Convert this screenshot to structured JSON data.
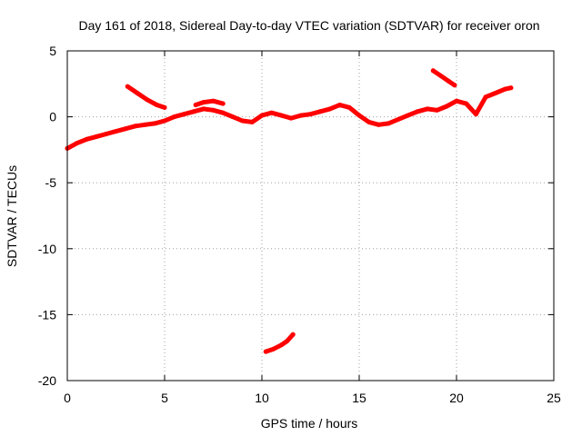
{
  "chart_data": {
    "type": "scatter",
    "title": "Day 161 of 2018, Sidereal Day-to-day VTEC variation (SDTVAR) for receiver oron",
    "xlabel": "GPS time / hours",
    "ylabel": "SDTVAR / TECUs",
    "xlim": [
      0,
      25
    ],
    "ylim": [
      -20,
      5
    ],
    "xticks": [
      "0",
      "5",
      "10",
      "15",
      "20",
      "25"
    ],
    "yticks": [
      "5",
      "0",
      "-5",
      "-10",
      "-15",
      "-20"
    ],
    "xtick_values": [
      0,
      5,
      10,
      15,
      20,
      25
    ],
    "ytick_values": [
      5,
      0,
      -5,
      -10,
      -15,
      -20
    ],
    "grid": true,
    "series_color": "#ff0000",
    "series": [
      {
        "name": "main trace",
        "x": [
          0.0,
          0.5,
          1.0,
          1.5,
          2.0,
          2.5,
          3.0,
          3.5,
          4.0,
          4.5,
          5.0,
          5.5,
          6.0,
          6.5,
          7.0,
          7.5,
          8.0,
          8.5,
          9.0,
          9.5,
          10.0,
          10.5,
          11.0,
          11.5,
          12.0,
          12.5,
          13.0,
          13.5,
          14.0,
          14.5,
          15.0,
          15.5,
          16.0,
          16.5,
          17.0,
          17.5,
          18.0,
          18.5,
          19.0,
          19.5,
          20.0,
          20.5,
          21.0,
          21.5,
          22.0,
          22.5,
          22.8
        ],
        "y": [
          -2.4,
          -2.0,
          -1.7,
          -1.5,
          -1.3,
          -1.1,
          -0.9,
          -0.7,
          -0.6,
          -0.5,
          -0.3,
          0.0,
          0.2,
          0.4,
          0.6,
          0.5,
          0.3,
          0.0,
          -0.3,
          -0.4,
          0.1,
          0.3,
          0.1,
          -0.1,
          0.1,
          0.2,
          0.4,
          0.6,
          0.9,
          0.7,
          0.1,
          -0.4,
          -0.6,
          -0.5,
          -0.2,
          0.1,
          0.4,
          0.6,
          0.5,
          0.8,
          1.2,
          1.0,
          0.2,
          1.5,
          1.8,
          2.1,
          2.2
        ]
      },
      {
        "name": "arc near 3-5 h",
        "x": [
          3.1,
          3.6,
          4.1,
          4.6,
          5.0
        ],
        "y": [
          2.3,
          1.8,
          1.3,
          0.9,
          0.7
        ]
      },
      {
        "name": "arc near 19-20 h",
        "x": [
          18.8,
          19.2,
          19.6,
          19.9
        ],
        "y": [
          3.5,
          3.1,
          2.7,
          2.4
        ]
      },
      {
        "name": "arc near 10-11.5 h",
        "x": [
          10.2,
          10.6,
          11.0,
          11.3,
          11.6
        ],
        "y": [
          -17.8,
          -17.6,
          -17.3,
          -17.0,
          -16.5
        ]
      },
      {
        "name": "arc near 7 h",
        "x": [
          6.6,
          7.0,
          7.5,
          8.0
        ],
        "y": [
          0.9,
          1.1,
          1.2,
          1.0
        ]
      }
    ]
  }
}
